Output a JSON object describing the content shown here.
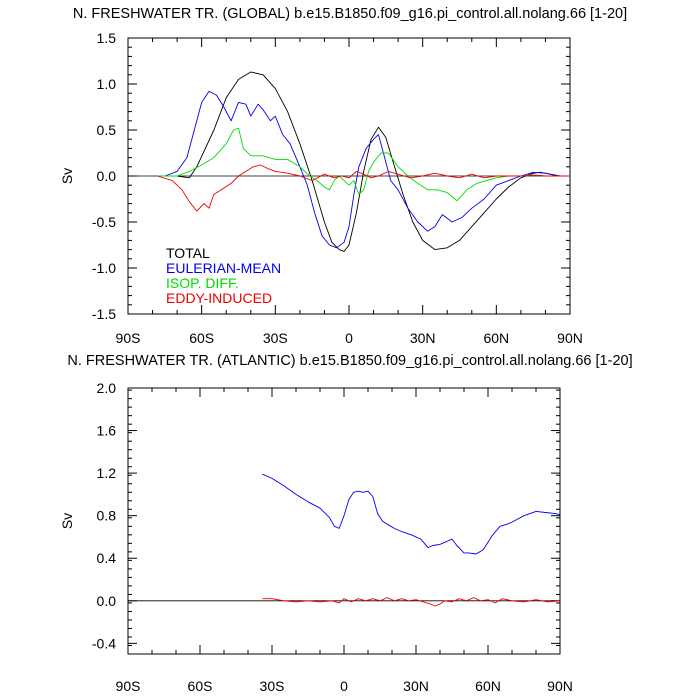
{
  "chart_data": [
    {
      "type": "line",
      "title": "N. FRESHWATER TR. (GLOBAL) b.e15.B1850.f09_g16.pi_control.all.nolang.66 [1-20]",
      "ylabel": "Sv",
      "xlim": [
        -90,
        90
      ],
      "ylim": [
        -1.5,
        1.5
      ],
      "x_ticks": [
        -90,
        -60,
        -30,
        0,
        30,
        60,
        90
      ],
      "x_tick_labels": [
        "90S",
        "60S",
        "30S",
        "0",
        "30N",
        "60N",
        "90N"
      ],
      "y_ticks": [
        -1.5,
        -1.0,
        -0.5,
        0.0,
        0.5,
        1.0,
        1.5
      ],
      "y_tick_labels": [
        "-1.5",
        "-1.0",
        "-0.5",
        "0.0",
        "0.5",
        "1.0",
        "1.5"
      ],
      "zero_line": true,
      "legend_placement": "bottom-left",
      "series": [
        {
          "name": "TOTAL",
          "color": "#000000",
          "x": [
            -78,
            -70,
            -65,
            -62,
            -55,
            -50,
            -45,
            -40,
            -35,
            -30,
            -25,
            -20,
            -15,
            -10,
            -7,
            -4,
            -2,
            0,
            3,
            6,
            9,
            12,
            15,
            18,
            22,
            26,
            30,
            35,
            40,
            45,
            50,
            55,
            60,
            65,
            70,
            75,
            78,
            82,
            86,
            90
          ],
          "y": [
            0.0,
            0.0,
            -0.02,
            0.1,
            0.5,
            0.85,
            1.05,
            1.13,
            1.1,
            0.95,
            0.7,
            0.35,
            -0.05,
            -0.5,
            -0.72,
            -0.8,
            -0.82,
            -0.75,
            -0.4,
            0.05,
            0.4,
            0.53,
            0.42,
            0.15,
            -0.2,
            -0.5,
            -0.7,
            -0.8,
            -0.78,
            -0.7,
            -0.55,
            -0.4,
            -0.25,
            -0.12,
            -0.02,
            0.03,
            0.04,
            0.02,
            0.0,
            0.0
          ]
        },
        {
          "name": "EULERIAN-MEAN",
          "color": "#0000ee",
          "x": [
            -75,
            -70,
            -66,
            -63,
            -60,
            -57,
            -54,
            -51,
            -48,
            -45,
            -42,
            -40,
            -37,
            -35,
            -32,
            -30,
            -27,
            -24,
            -20,
            -17,
            -14,
            -11,
            -8,
            -5,
            -2,
            0,
            2,
            4,
            7,
            10,
            12,
            14,
            17,
            20,
            24,
            28,
            32,
            35,
            38,
            42,
            46,
            50,
            55,
            60,
            65,
            70,
            75,
            80,
            85,
            90
          ],
          "y": [
            0.0,
            0.05,
            0.2,
            0.5,
            0.8,
            0.92,
            0.88,
            0.75,
            0.6,
            0.8,
            0.78,
            0.65,
            0.78,
            0.72,
            0.6,
            0.65,
            0.45,
            0.35,
            0.1,
            -0.1,
            -0.4,
            -0.65,
            -0.75,
            -0.78,
            -0.72,
            -0.55,
            -0.2,
            0.1,
            0.3,
            0.4,
            0.45,
            0.25,
            -0.05,
            -0.15,
            -0.35,
            -0.5,
            -0.6,
            -0.55,
            -0.42,
            -0.5,
            -0.45,
            -0.35,
            -0.25,
            -0.1,
            -0.05,
            0.0,
            0.04,
            0.03,
            0.0,
            0.0
          ]
        },
        {
          "name": "ISOP. DIFF.",
          "color": "#00dd00",
          "x": [
            -78,
            -70,
            -65,
            -60,
            -55,
            -50,
            -47,
            -45,
            -43,
            -40,
            -35,
            -30,
            -25,
            -20,
            -16,
            -13,
            -10,
            -8,
            -6,
            -4,
            -2,
            0,
            2,
            4,
            6,
            8,
            10,
            13,
            16,
            20,
            24,
            28,
            32,
            36,
            40,
            44,
            48,
            52,
            56,
            60,
            65,
            70,
            75,
            80,
            85,
            90
          ],
          "y": [
            0.0,
            0.0,
            0.05,
            0.12,
            0.2,
            0.35,
            0.5,
            0.52,
            0.3,
            0.22,
            0.22,
            0.18,
            0.18,
            0.1,
            0.0,
            -0.05,
            -0.12,
            -0.15,
            -0.05,
            0.0,
            -0.05,
            -0.1,
            -0.05,
            -0.2,
            -0.15,
            0.05,
            0.15,
            0.25,
            0.25,
            0.1,
            0.0,
            -0.08,
            -0.15,
            -0.15,
            -0.18,
            -0.27,
            -0.15,
            -0.08,
            -0.05,
            -0.02,
            0.0,
            0.0,
            0.01,
            0.0,
            0.0,
            0.0
          ]
        },
        {
          "name": "EDDY-INDUCED",
          "color": "#ee0000",
          "x": [
            -78,
            -72,
            -68,
            -65,
            -62,
            -59,
            -57,
            -55,
            -52,
            -48,
            -45,
            -42,
            -39,
            -36,
            -33,
            -30,
            -25,
            -20,
            -15,
            -10,
            -6,
            -3,
            0,
            3,
            6,
            9,
            12,
            16,
            20,
            25,
            30,
            35,
            40,
            45,
            50,
            55,
            60,
            65,
            70,
            75,
            80,
            85,
            90
          ],
          "y": [
            0.0,
            -0.05,
            -0.15,
            -0.28,
            -0.38,
            -0.3,
            -0.35,
            -0.2,
            -0.15,
            -0.08,
            0.0,
            0.05,
            0.1,
            0.12,
            0.08,
            0.05,
            0.03,
            0.0,
            -0.05,
            0.02,
            -0.02,
            0.0,
            -0.02,
            0.05,
            0.02,
            -0.02,
            0.0,
            0.05,
            0.02,
            -0.02,
            0.0,
            0.03,
            0.0,
            -0.02,
            0.02,
            -0.02,
            0.0,
            0.0,
            0.0,
            0.01,
            0.0,
            0.0,
            0.0
          ]
        }
      ]
    },
    {
      "type": "line",
      "title": "N. FRESHWATER TR. (ATLANTIC) b.e15.B1850.f09_g16.pi_control.all.nolang.66 [1-20]",
      "ylabel": "Sv",
      "xlim": [
        -90,
        90
      ],
      "ylim": [
        -0.5,
        2.0
      ],
      "x_ticks": [
        -90,
        -60,
        -30,
        0,
        30,
        60,
        90
      ],
      "x_tick_labels": [
        "90S",
        "60S",
        "30S",
        "0",
        "30N",
        "60N",
        "90N"
      ],
      "y_ticks": [
        -0.4,
        0.0,
        0.4,
        0.8,
        1.2,
        1.6,
        2.0
      ],
      "y_tick_labels": [
        "-0.4",
        "0.0",
        "0.4",
        "0.8",
        "1.2",
        "1.6",
        "2.0"
      ],
      "zero_line": true,
      "series": [
        {
          "color": "#0000ee",
          "x": [
            -34,
            -30,
            -25,
            -20,
            -15,
            -10,
            -6,
            -4,
            -2,
            0,
            2,
            4,
            6,
            8,
            10,
            12,
            14,
            16,
            18,
            21,
            24,
            28,
            32,
            35,
            37,
            40,
            42,
            45,
            47,
            50,
            52,
            55,
            58,
            60,
            62,
            65,
            68,
            70,
            75,
            80,
            84,
            88,
            90
          ],
          "y": [
            1.19,
            1.15,
            1.08,
            1.0,
            0.93,
            0.87,
            0.78,
            0.7,
            0.68,
            0.8,
            0.95,
            1.02,
            1.03,
            1.02,
            1.03,
            0.98,
            0.82,
            0.75,
            0.72,
            0.68,
            0.65,
            0.62,
            0.58,
            0.5,
            0.52,
            0.53,
            0.55,
            0.58,
            0.52,
            0.45,
            0.45,
            0.44,
            0.48,
            0.55,
            0.62,
            0.7,
            0.72,
            0.74,
            0.8,
            0.84,
            0.83,
            0.82,
            0.81
          ]
        },
        {
          "color": "#ee0000",
          "x": [
            -34,
            -30,
            -25,
            -20,
            -15,
            -10,
            -5,
            -2,
            0,
            3,
            6,
            9,
            12,
            15,
            18,
            21,
            24,
            27,
            30,
            33,
            36,
            38,
            40,
            42,
            45,
            48,
            51,
            54,
            57,
            60,
            63,
            66,
            70,
            75,
            80,
            85,
            90
          ],
          "y": [
            0.02,
            0.02,
            0.0,
            -0.01,
            0.0,
            -0.01,
            0.0,
            -0.02,
            0.02,
            -0.01,
            0.02,
            0.0,
            0.02,
            0.0,
            0.03,
            0.0,
            0.02,
            0.0,
            0.01,
            -0.01,
            -0.03,
            -0.05,
            -0.03,
            0.0,
            -0.01,
            0.02,
            0.0,
            0.03,
            0.0,
            0.01,
            -0.02,
            0.02,
            0.0,
            -0.01,
            0.01,
            -0.01,
            0.0
          ]
        }
      ]
    }
  ]
}
